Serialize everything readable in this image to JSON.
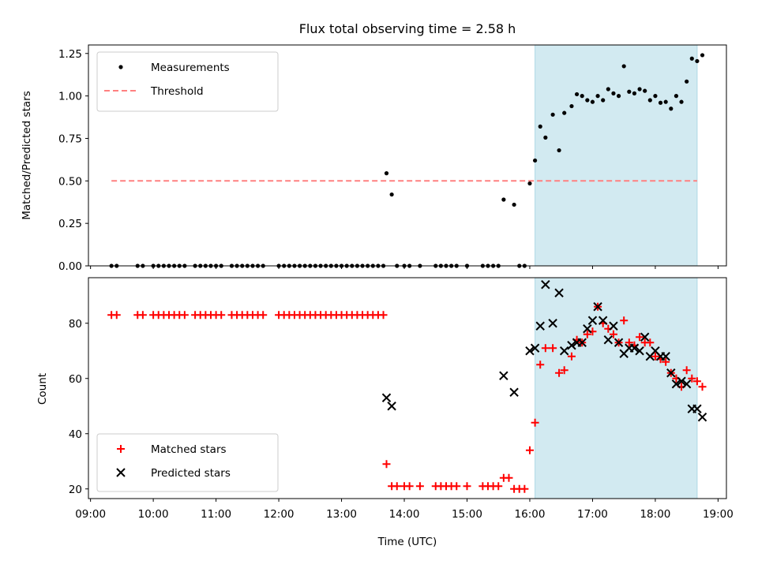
{
  "title": "Flux total observing time = 2.58 h",
  "chart_data": [
    {
      "type": "scatter",
      "ylabel": "Matched/Predicted stars",
      "ylim": [
        0,
        1.3
      ],
      "yticks": [
        0.0,
        0.25,
        0.5,
        0.75,
        1.0,
        1.25
      ],
      "ytick_labels": [
        "0.00",
        "0.25",
        "0.50",
        "0.75",
        "1.00",
        "1.25"
      ],
      "legend": {
        "position": "top-left"
      },
      "span": {
        "start": "16:05",
        "end": "18:40",
        "color": "#add8e6"
      },
      "threshold": {
        "name": "Threshold",
        "value": 0.5,
        "x_start": "09:20",
        "x_end": "18:40",
        "color": "#ff8080"
      },
      "series": [
        {
          "name": "Measurements",
          "marker": "dot",
          "color": "#000000",
          "points": [
            [
              "09:20",
              0
            ],
            [
              "09:25",
              0
            ],
            [
              "09:45",
              0
            ],
            [
              "09:50",
              0
            ],
            [
              "10:00",
              0
            ],
            [
              "10:05",
              0
            ],
            [
              "10:10",
              0
            ],
            [
              "10:15",
              0
            ],
            [
              "10:20",
              0
            ],
            [
              "10:25",
              0
            ],
            [
              "10:30",
              0
            ],
            [
              "10:40",
              0
            ],
            [
              "10:45",
              0
            ],
            [
              "10:50",
              0
            ],
            [
              "10:55",
              0
            ],
            [
              "11:00",
              0
            ],
            [
              "11:05",
              0
            ],
            [
              "11:15",
              0
            ],
            [
              "11:20",
              0
            ],
            [
              "11:25",
              0
            ],
            [
              "11:30",
              0
            ],
            [
              "11:35",
              0
            ],
            [
              "11:40",
              0
            ],
            [
              "11:45",
              0
            ],
            [
              "12:00",
              0
            ],
            [
              "12:05",
              0
            ],
            [
              "12:10",
              0
            ],
            [
              "12:15",
              0
            ],
            [
              "12:20",
              0
            ],
            [
              "12:25",
              0
            ],
            [
              "12:30",
              0
            ],
            [
              "12:35",
              0
            ],
            [
              "12:40",
              0
            ],
            [
              "12:45",
              0
            ],
            [
              "12:50",
              0
            ],
            [
              "12:55",
              0
            ],
            [
              "13:00",
              0
            ],
            [
              "13:05",
              0
            ],
            [
              "13:10",
              0
            ],
            [
              "13:15",
              0
            ],
            [
              "13:20",
              0
            ],
            [
              "13:25",
              0
            ],
            [
              "13:30",
              0
            ],
            [
              "13:35",
              0
            ],
            [
              "13:40",
              0
            ],
            [
              "13:43",
              0.545
            ],
            [
              "13:48",
              0.42
            ],
            [
              "13:53",
              0
            ],
            [
              "14:00",
              0
            ],
            [
              "14:05",
              0
            ],
            [
              "14:15",
              0
            ],
            [
              "14:30",
              0
            ],
            [
              "14:35",
              0
            ],
            [
              "14:40",
              0
            ],
            [
              "14:45",
              0
            ],
            [
              "14:50",
              0
            ],
            [
              "15:00",
              0
            ],
            [
              "15:15",
              0
            ],
            [
              "15:20",
              0
            ],
            [
              "15:25",
              0
            ],
            [
              "15:30",
              0
            ],
            [
              "15:35",
              0.39
            ],
            [
              "15:45",
              0.36
            ],
            [
              "15:50",
              0
            ],
            [
              "15:55",
              0
            ],
            [
              "16:00",
              0.485
            ],
            [
              "16:05",
              0.62
            ],
            [
              "16:10",
              0.82
            ],
            [
              "16:15",
              0.755
            ],
            [
              "16:22",
              0.89
            ],
            [
              "16:28",
              0.68
            ],
            [
              "16:33",
              0.9
            ],
            [
              "16:40",
              0.94
            ],
            [
              "16:45",
              1.01
            ],
            [
              "16:50",
              1.0
            ],
            [
              "16:55",
              0.975
            ],
            [
              "17:00",
              0.965
            ],
            [
              "17:05",
              1.0
            ],
            [
              "17:10",
              0.975
            ],
            [
              "17:15",
              1.04
            ],
            [
              "17:20",
              1.015
            ],
            [
              "17:25",
              1.0
            ],
            [
              "17:30",
              1.175
            ],
            [
              "17:35",
              1.025
            ],
            [
              "17:40",
              1.015
            ],
            [
              "17:45",
              1.04
            ],
            [
              "17:50",
              1.03
            ],
            [
              "17:55",
              0.975
            ],
            [
              "18:00",
              1.0
            ],
            [
              "18:05",
              0.96
            ],
            [
              "18:10",
              0.965
            ],
            [
              "18:15",
              0.925
            ],
            [
              "18:20",
              1.0
            ],
            [
              "18:25",
              0.965
            ],
            [
              "18:30",
              1.085
            ],
            [
              "18:35",
              1.22
            ],
            [
              "18:40",
              1.205
            ],
            [
              "18:45",
              1.24
            ]
          ]
        }
      ]
    },
    {
      "type": "scatter",
      "xlabel": "Time (UTC)",
      "ylabel": "Count",
      "ylim": [
        16.5,
        96.5
      ],
      "yticks": [
        20,
        40,
        60,
        80
      ],
      "ytick_labels": [
        "20",
        "40",
        "60",
        "80"
      ],
      "xlim": [
        "08:58",
        "19:08"
      ],
      "xticks": [
        "09:00",
        "10:00",
        "11:00",
        "12:00",
        "13:00",
        "14:00",
        "15:00",
        "16:00",
        "17:00",
        "18:00",
        "19:00"
      ],
      "legend": {
        "position": "bottom-left"
      },
      "span": {
        "start": "16:05",
        "end": "18:40",
        "color": "#add8e6"
      },
      "series": [
        {
          "name": "Matched stars",
          "marker": "plus",
          "color": "#ff0000",
          "points": [
            [
              "09:20",
              83
            ],
            [
              "09:25",
              83
            ],
            [
              "09:45",
              83
            ],
            [
              "09:50",
              83
            ],
            [
              "10:00",
              83
            ],
            [
              "10:05",
              83
            ],
            [
              "10:10",
              83
            ],
            [
              "10:15",
              83
            ],
            [
              "10:20",
              83
            ],
            [
              "10:25",
              83
            ],
            [
              "10:30",
              83
            ],
            [
              "10:40",
              83
            ],
            [
              "10:45",
              83
            ],
            [
              "10:50",
              83
            ],
            [
              "10:55",
              83
            ],
            [
              "11:00",
              83
            ],
            [
              "11:05",
              83
            ],
            [
              "11:15",
              83
            ],
            [
              "11:20",
              83
            ],
            [
              "11:25",
              83
            ],
            [
              "11:30",
              83
            ],
            [
              "11:35",
              83
            ],
            [
              "11:40",
              83
            ],
            [
              "11:45",
              83
            ],
            [
              "12:00",
              83
            ],
            [
              "12:05",
              83
            ],
            [
              "12:10",
              83
            ],
            [
              "12:15",
              83
            ],
            [
              "12:20",
              83
            ],
            [
              "12:25",
              83
            ],
            [
              "12:30",
              83
            ],
            [
              "12:35",
              83
            ],
            [
              "12:40",
              83
            ],
            [
              "12:45",
              83
            ],
            [
              "12:50",
              83
            ],
            [
              "12:55",
              83
            ],
            [
              "13:00",
              83
            ],
            [
              "13:05",
              83
            ],
            [
              "13:10",
              83
            ],
            [
              "13:15",
              83
            ],
            [
              "13:20",
              83
            ],
            [
              "13:25",
              83
            ],
            [
              "13:30",
              83
            ],
            [
              "13:35",
              83
            ],
            [
              "13:40",
              83
            ],
            [
              "13:43",
              29
            ],
            [
              "13:48",
              21
            ],
            [
              "13:53",
              21
            ],
            [
              "14:00",
              21
            ],
            [
              "14:05",
              21
            ],
            [
              "14:15",
              21
            ],
            [
              "14:30",
              21
            ],
            [
              "14:35",
              21
            ],
            [
              "14:40",
              21
            ],
            [
              "14:45",
              21
            ],
            [
              "14:50",
              21
            ],
            [
              "15:00",
              21
            ],
            [
              "15:15",
              21
            ],
            [
              "15:20",
              21
            ],
            [
              "15:25",
              21
            ],
            [
              "15:30",
              21
            ],
            [
              "15:35",
              24
            ],
            [
              "15:40",
              24
            ],
            [
              "15:45",
              20
            ],
            [
              "15:50",
              20
            ],
            [
              "15:55",
              20
            ],
            [
              "16:00",
              34
            ],
            [
              "16:05",
              44
            ],
            [
              "16:10",
              65
            ],
            [
              "16:15",
              71
            ],
            [
              "16:22",
              71
            ],
            [
              "16:28",
              62
            ],
            [
              "16:33",
              63
            ],
            [
              "16:40",
              68
            ],
            [
              "16:45",
              74
            ],
            [
              "16:50",
              73
            ],
            [
              "16:55",
              76
            ],
            [
              "17:00",
              77
            ],
            [
              "17:05",
              86
            ],
            [
              "17:10",
              80
            ],
            [
              "17:15",
              78
            ],
            [
              "17:20",
              76
            ],
            [
              "17:25",
              73
            ],
            [
              "17:30",
              81
            ],
            [
              "17:35",
              73
            ],
            [
              "17:40",
              72
            ],
            [
              "17:45",
              75
            ],
            [
              "17:50",
              73
            ],
            [
              "17:55",
              73
            ],
            [
              "18:00",
              68
            ],
            [
              "18:05",
              67
            ],
            [
              "18:10",
              66
            ],
            [
              "18:15",
              62
            ],
            [
              "18:20",
              60
            ],
            [
              "18:25",
              57
            ],
            [
              "18:30",
              63
            ],
            [
              "18:35",
              60
            ],
            [
              "18:40",
              59
            ],
            [
              "18:45",
              57
            ]
          ]
        },
        {
          "name": "Predicted stars",
          "marker": "x",
          "color": "#000000",
          "points": [
            [
              "13:43",
              53
            ],
            [
              "13:48",
              50
            ],
            [
              "15:35",
              61
            ],
            [
              "15:45",
              55
            ],
            [
              "16:00",
              70
            ],
            [
              "16:05",
              71
            ],
            [
              "16:10",
              79
            ],
            [
              "16:15",
              94
            ],
            [
              "16:22",
              80
            ],
            [
              "16:28",
              91
            ],
            [
              "16:33",
              70
            ],
            [
              "16:40",
              72
            ],
            [
              "16:45",
              73
            ],
            [
              "16:50",
              73
            ],
            [
              "16:55",
              78
            ],
            [
              "17:00",
              81
            ],
            [
              "17:05",
              86
            ],
            [
              "17:10",
              81
            ],
            [
              "17:15",
              74
            ],
            [
              "17:20",
              79
            ],
            [
              "17:25",
              73
            ],
            [
              "17:30",
              69
            ],
            [
              "17:35",
              71
            ],
            [
              "17:40",
              71
            ],
            [
              "17:45",
              70
            ],
            [
              "17:50",
              75
            ],
            [
              "17:55",
              68
            ],
            [
              "18:00",
              70
            ],
            [
              "18:05",
              68
            ],
            [
              "18:10",
              68
            ],
            [
              "18:15",
              62
            ],
            [
              "18:20",
              58
            ],
            [
              "18:25",
              59
            ],
            [
              "18:30",
              58
            ],
            [
              "18:35",
              49
            ],
            [
              "18:40",
              49
            ],
            [
              "18:45",
              46
            ]
          ]
        }
      ]
    }
  ]
}
